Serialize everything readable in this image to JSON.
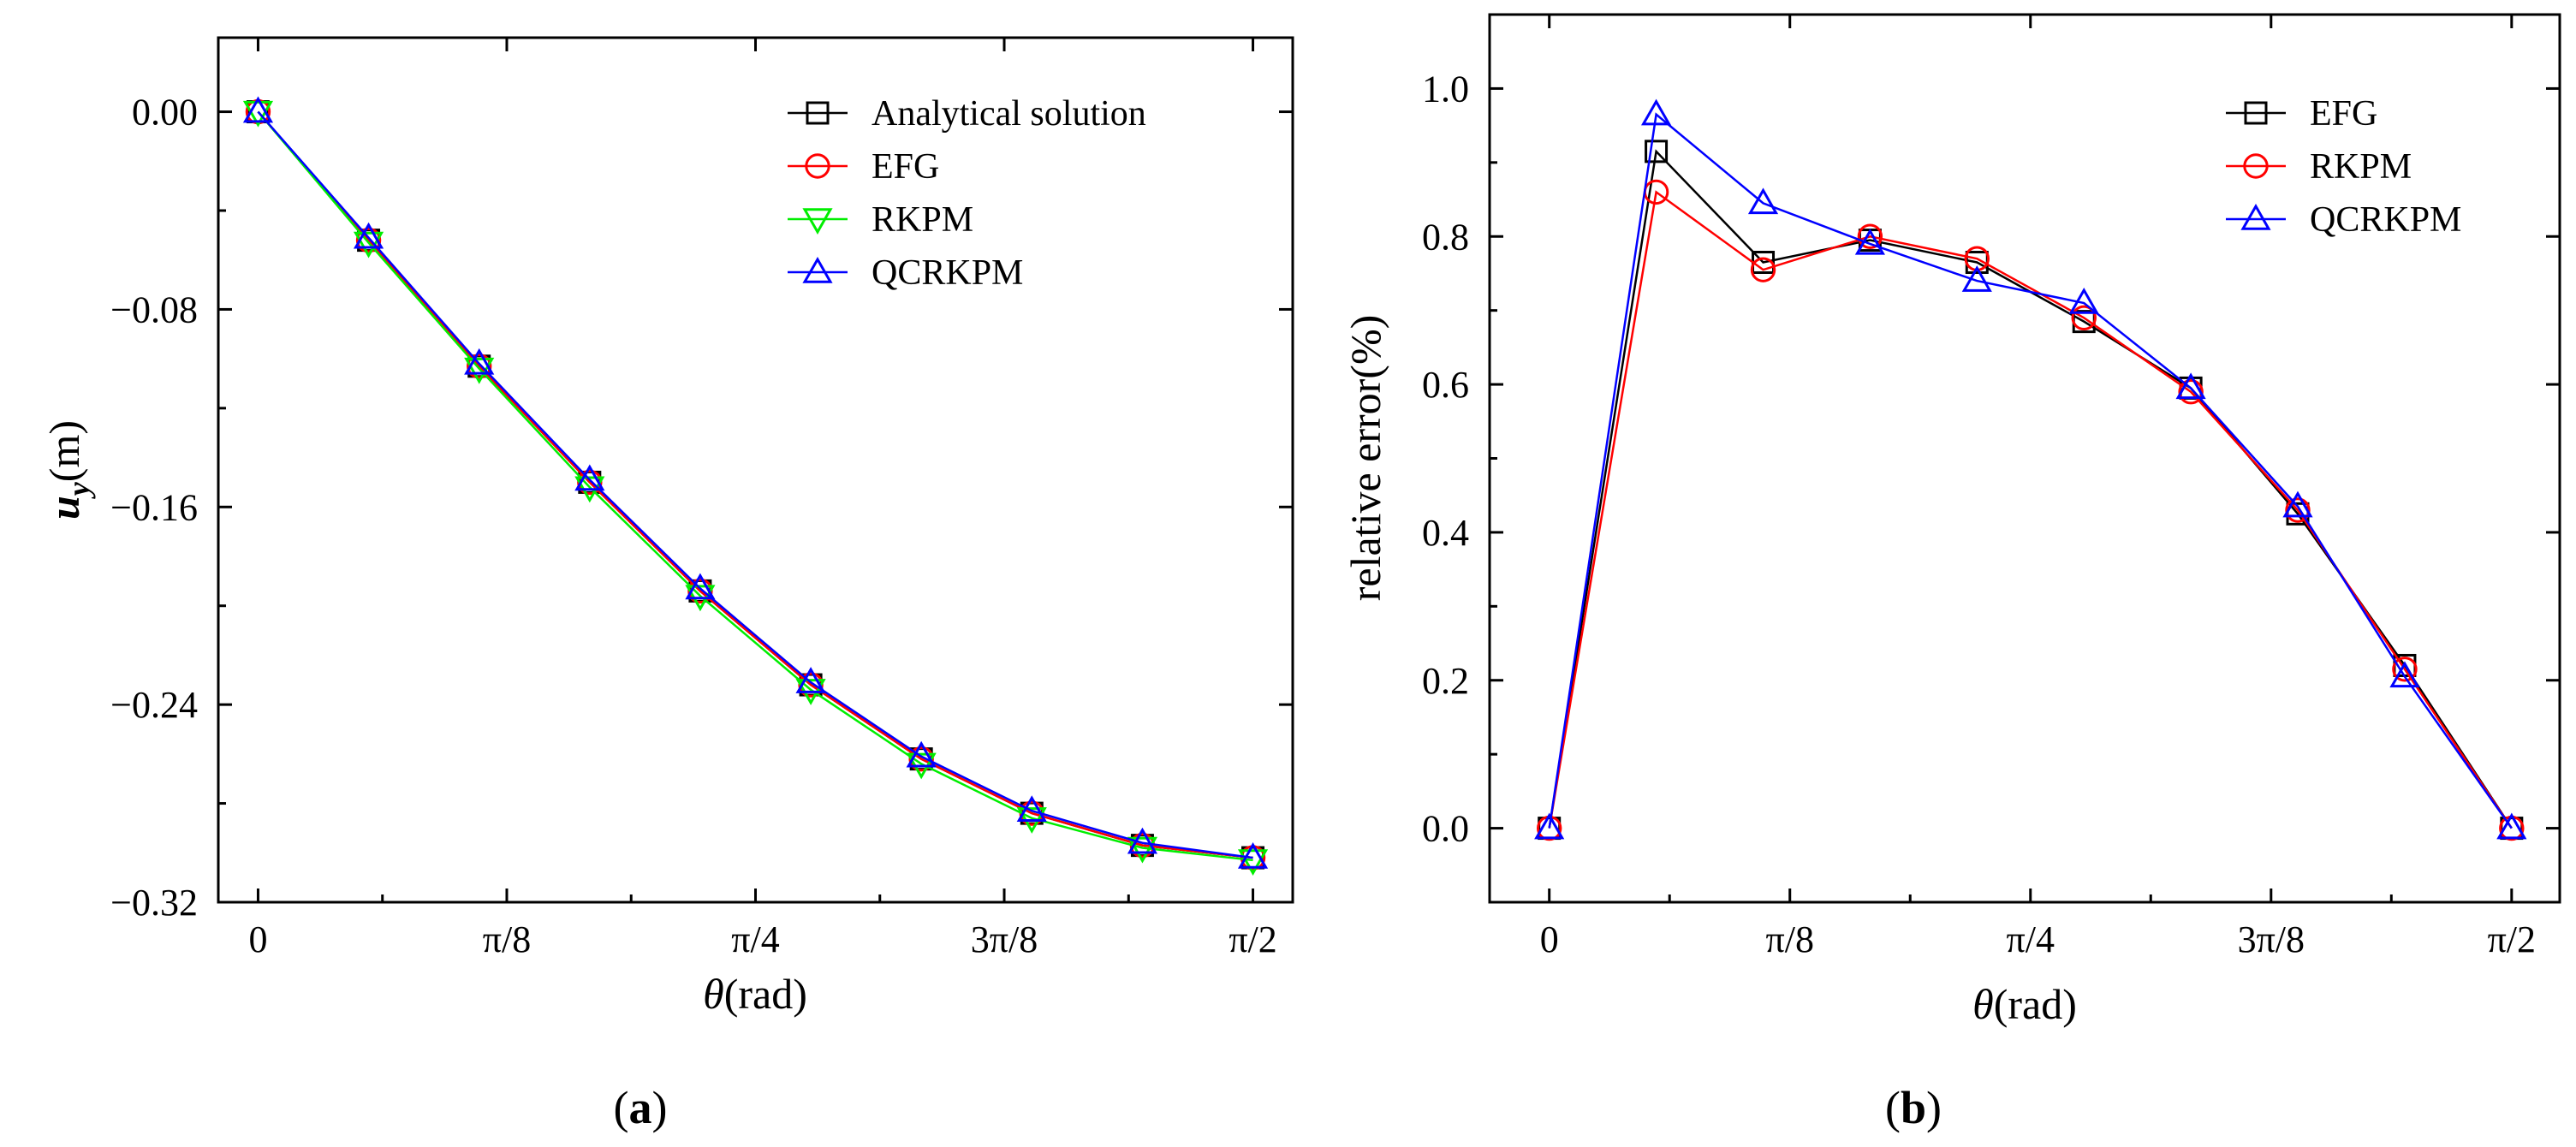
{
  "chart_data": [
    {
      "id": "a",
      "type": "line",
      "panel_label_open": "(",
      "panel_label_letter": "a",
      "panel_label_close": ")",
      "xlabel_symbol": "θ",
      "xlabel_unit": "(rad)",
      "ylabel_symbol": "u",
      "ylabel_sub": "y",
      "ylabel_unit": "(m)",
      "xlim": [
        -0.0628,
        1.6336
      ],
      "ylim": [
        -0.32,
        0.03
      ],
      "xticks": [
        {
          "value": 0,
          "label": "0"
        },
        {
          "value": 0.3927,
          "label": "π/8"
        },
        {
          "value": 0.7854,
          "label": "π/4"
        },
        {
          "value": 1.1781,
          "label": "3π/8"
        },
        {
          "value": 1.5708,
          "label": "π/2"
        }
      ],
      "yticks": [
        {
          "value": 0.0,
          "label": "0.00"
        },
        {
          "value": -0.08,
          "label": "−0.08"
        },
        {
          "value": -0.16,
          "label": "−0.16"
        },
        {
          "value": -0.24,
          "label": "−0.24"
        },
        {
          "value": -0.32,
          "label": "−0.32"
        }
      ],
      "legend_position": "top-right",
      "x": [
        0,
        0.1745,
        0.3491,
        0.5236,
        0.6981,
        0.8727,
        1.0472,
        1.2217,
        1.3963,
        1.5708
      ],
      "series": [
        {
          "name": "Analytical solution",
          "color": "#000000",
          "marker": "square",
          "values": [
            0.0,
            -0.052,
            -0.103,
            -0.15,
            -0.194,
            -0.232,
            -0.262,
            -0.284,
            -0.297,
            -0.302
          ]
        },
        {
          "name": "EFG",
          "color": "#ff0000",
          "marker": "circle",
          "values": [
            0.0,
            -0.052,
            -0.103,
            -0.15,
            -0.194,
            -0.232,
            -0.262,
            -0.284,
            -0.297,
            -0.302
          ]
        },
        {
          "name": "RKPM",
          "color": "#00ee00",
          "marker": "triangle-down",
          "values": [
            0.0,
            -0.053,
            -0.104,
            -0.152,
            -0.196,
            -0.234,
            -0.264,
            -0.286,
            -0.298,
            -0.303
          ]
        },
        {
          "name": "QCRKPM",
          "color": "#0000ff",
          "marker": "triangle-up",
          "values": [
            0.0,
            -0.051,
            -0.102,
            -0.149,
            -0.193,
            -0.231,
            -0.261,
            -0.283,
            -0.296,
            -0.302
          ]
        }
      ]
    },
    {
      "id": "b",
      "type": "line",
      "panel_label_open": "(",
      "panel_label_letter": "b",
      "panel_label_close": ")",
      "xlabel_symbol": "θ",
      "xlabel_unit": "(rad)",
      "ylabel": "relative error(%)",
      "xlim": [
        -0.0974,
        1.6493
      ],
      "ylim": [
        -0.1,
        1.1
      ],
      "xticks": [
        {
          "value": 0,
          "label": "0"
        },
        {
          "value": 0.3927,
          "label": "π/8"
        },
        {
          "value": 0.7854,
          "label": "π/4"
        },
        {
          "value": 1.1781,
          "label": "3π/8"
        },
        {
          "value": 1.5708,
          "label": "π/2"
        }
      ],
      "yticks": [
        {
          "value": 0.0,
          "label": "0.0"
        },
        {
          "value": 0.2,
          "label": "0.2"
        },
        {
          "value": 0.4,
          "label": "0.4"
        },
        {
          "value": 0.6,
          "label": "0.6"
        },
        {
          "value": 0.8,
          "label": "0.8"
        },
        {
          "value": 1.0,
          "label": "1.0"
        }
      ],
      "legend_position": "top-right",
      "x": [
        0,
        0.1745,
        0.3491,
        0.5236,
        0.6981,
        0.8727,
        1.0472,
        1.2217,
        1.3963,
        1.5708
      ],
      "series": [
        {
          "name": "EFG",
          "color": "#000000",
          "marker": "square",
          "values": [
            0.0,
            0.915,
            0.765,
            0.795,
            0.765,
            0.685,
            0.595,
            0.425,
            0.22,
            0.0
          ]
        },
        {
          "name": "RKPM",
          "color": "#ff0000",
          "marker": "circle",
          "values": [
            0.0,
            0.86,
            0.755,
            0.8,
            0.77,
            0.69,
            0.59,
            0.43,
            0.215,
            0.0
          ]
        },
        {
          "name": "QCRKPM",
          "color": "#0000ff",
          "marker": "triangle-up",
          "values": [
            0.0,
            0.965,
            0.845,
            0.79,
            0.74,
            0.71,
            0.595,
            0.435,
            0.205,
            0.0
          ]
        }
      ]
    }
  ]
}
